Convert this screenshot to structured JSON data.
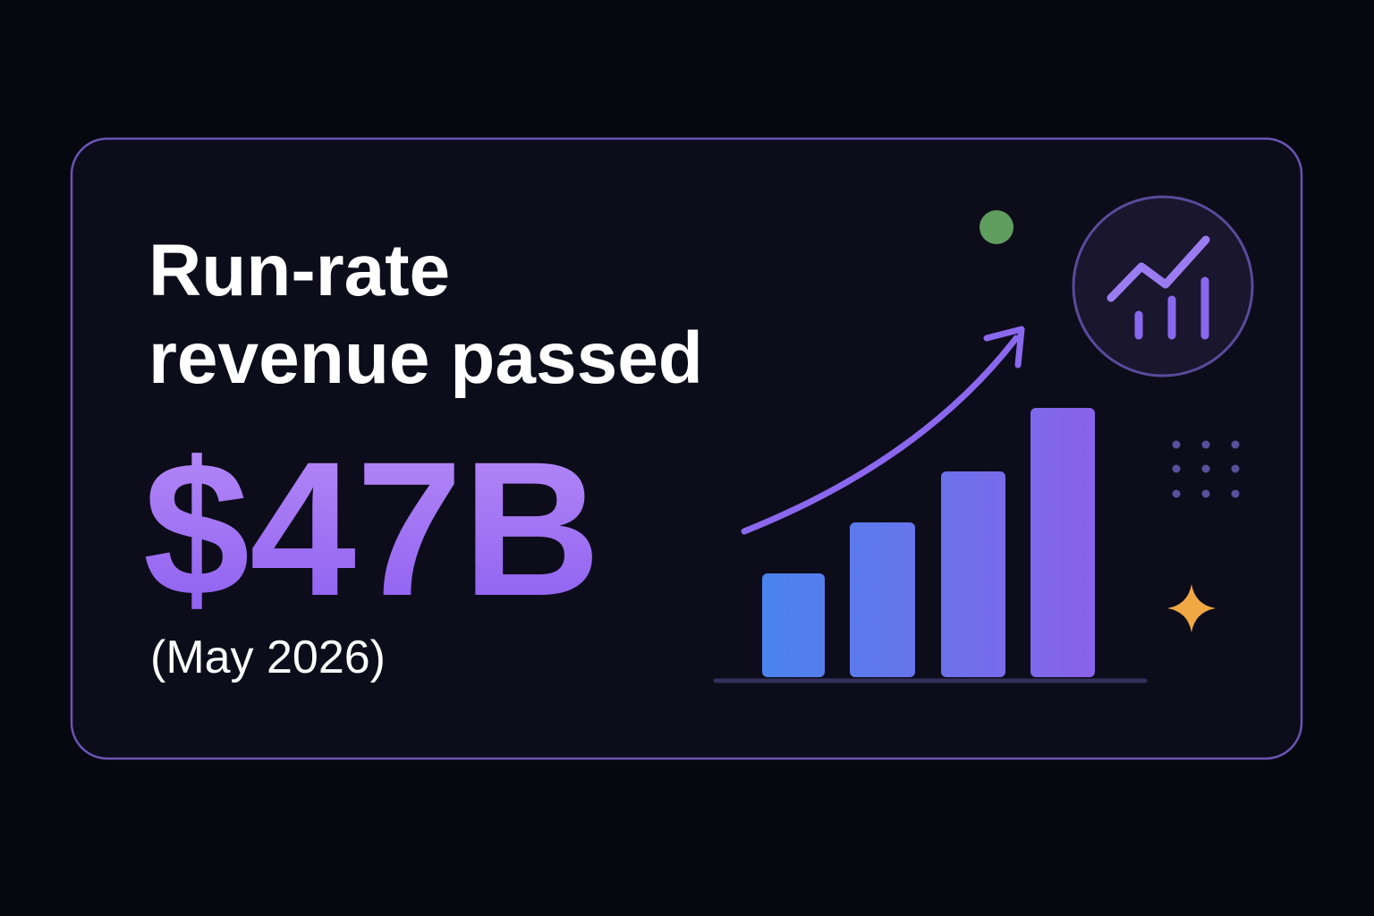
{
  "headline": {
    "lines": [
      "Run-rate",
      "revenue passed"
    ]
  },
  "figure": {
    "amount": "$47B",
    "date": "(May 2026)"
  }
}
